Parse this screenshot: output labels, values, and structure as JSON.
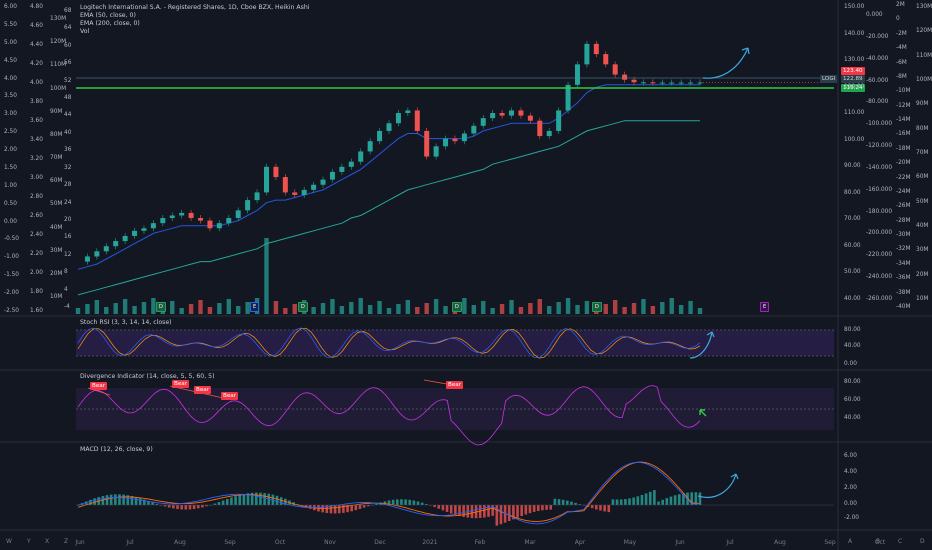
{
  "header": {
    "title": "Logitech International S.A. - Registered Shares, 1D, Cboe BZX, Heikin Ashi",
    "ema50": "EMA (50, close, 0)",
    "ema200": "EMA (200, close, 0)",
    "vol": "Vol"
  },
  "price_badges": {
    "last_red": "123.40",
    "logi_label": "LOGI",
    "logi_value": "122.89",
    "green_line": "119.24"
  },
  "indicators": {
    "stoch": "Stoch RSI (3, 3, 14, 14, close)",
    "div": "Divergence Indicator (14, close, 5, 5, 60, 5)",
    "macd": "MACD (12, 26, close, 9)"
  },
  "divergence_labels": [
    "Bear",
    "Bear",
    "Bear",
    "Bear",
    "Bear"
  ],
  "event_markers": [
    "D",
    "E",
    "D",
    "D",
    "D",
    "E"
  ],
  "bottom_letters": [
    "W",
    "Y",
    "X",
    "Z"
  ],
  "right_bottom_letters": [
    "A",
    "B",
    "C",
    "D"
  ],
  "left_axes": {
    "a": [
      "6.00",
      "5.50",
      "5.00",
      "4.50",
      "4.00",
      "3.50",
      "3.00",
      "2.50",
      "2.00",
      "1.50",
      "1.00",
      "0.50",
      "0.00",
      "-0.50",
      "-1.00",
      "-1.50",
      "-2.00",
      "-2.50"
    ],
    "b": [
      "4.80",
      "4.60",
      "4.40",
      "4.20",
      "4.00",
      "3.80",
      "3.60",
      "3.40",
      "3.20",
      "3.00",
      "2.80",
      "2.60",
      "2.40",
      "2.20",
      "2.00",
      "1.80",
      "1.60"
    ],
    "c": [
      "130M",
      "120M",
      "110M",
      "100M",
      "90M",
      "80M",
      "70M",
      "60M",
      "50M",
      "40M",
      "30M",
      "20M",
      "10M"
    ],
    "d": [
      "68",
      "64",
      "60",
      "56",
      "52",
      "48",
      "44",
      "40",
      "36",
      "32",
      "28",
      "24",
      "20",
      "16",
      "12",
      "8",
      "4",
      "-4"
    ]
  },
  "right_axes": {
    "price": [
      "150.00",
      "140.00",
      "130.00",
      "120.00",
      "110.00",
      "100.00",
      "90.00",
      "80.00",
      "70.00",
      "60.00",
      "50.00",
      "40.00"
    ],
    "osc": [
      "0.000",
      "-20.000",
      "-40.000",
      "-60.000",
      "-80.000",
      "-100.000",
      "-120.000",
      "-140.000",
      "-160.000",
      "-180.000",
      "-200.000",
      "-220.000",
      "-240.000",
      "-260.000"
    ],
    "vol2": [
      "2M",
      "0",
      "-2M",
      "-4M",
      "-6M",
      "-8M",
      "-10M",
      "-12M",
      "-14M",
      "-16M",
      "-18M",
      "-20M",
      "-22M",
      "-24M",
      "-26M",
      "-28M",
      "-30M",
      "-32M",
      "-34M",
      "-36M",
      "-38M",
      "-40M"
    ],
    "far": [
      "130M",
      "120M",
      "110M",
      "100M",
      "90M",
      "80M",
      "70M",
      "60M",
      "50M",
      "40M",
      "30M",
      "20M",
      "10M"
    ]
  },
  "chart_data": {
    "type": "line",
    "x_ticks": [
      "Jun",
      "Jul",
      "Aug",
      "Sep",
      "Oct",
      "Nov",
      "Dec",
      "2021",
      "Feb",
      "Mar",
      "Apr",
      "May",
      "Jun",
      "Jul",
      "Aug",
      "Sep",
      "Oct"
    ],
    "price_series": {
      "t": [
        0,
        1,
        2,
        3,
        4,
        5,
        6,
        7,
        8,
        9,
        10,
        11,
        12,
        13,
        14,
        15,
        16,
        17,
        18,
        19,
        20,
        21,
        22,
        23,
        24,
        25,
        26,
        27,
        28,
        29,
        30,
        31,
        32,
        33,
        34,
        35,
        36,
        37,
        38,
        39,
        40,
        41,
        42,
        43,
        44,
        45,
        46,
        47,
        48,
        49,
        50,
        51,
        52,
        53,
        54,
        55,
        56,
        57,
        58,
        59,
        60,
        61,
        62,
        63,
        64,
        65,
        66
      ],
      "close": [
        53,
        55,
        57,
        59,
        61,
        63,
        65,
        66,
        68,
        70,
        71,
        72,
        70,
        69,
        66,
        68,
        70,
        73,
        77,
        80,
        90,
        86,
        80,
        79,
        81,
        83,
        85,
        88,
        90,
        92,
        96,
        100,
        104,
        107,
        111,
        112,
        104,
        94,
        98,
        101,
        100,
        103,
        106,
        109,
        111,
        110,
        112,
        110,
        108,
        102,
        104,
        112,
        122,
        130,
        138,
        134,
        130,
        126,
        124,
        123,
        123,
        122.9,
        122.9,
        122.9,
        122.9,
        122.9,
        122.9
      ],
      "ema50": [
        50,
        51,
        52,
        54,
        56,
        58,
        60,
        62,
        64,
        65,
        66,
        67,
        67,
        67,
        67,
        67,
        68,
        69,
        71,
        73,
        76,
        77,
        77,
        78,
        79,
        80,
        81,
        83,
        85,
        87,
        89,
        92,
        95,
        98,
        101,
        103,
        103,
        101,
        101,
        101,
        101,
        101,
        102,
        104,
        105,
        106,
        107,
        107,
        107,
        107,
        107,
        109,
        112,
        115,
        119,
        121,
        122,
        122,
        122,
        122,
        122,
        122,
        122,
        122,
        122,
        122,
        122
      ],
      "ema200": [
        40,
        41,
        42,
        43,
        44,
        45,
        46,
        47,
        48,
        49,
        50,
        51,
        52,
        53,
        53,
        54,
        55,
        56,
        57,
        58,
        60,
        61,
        62,
        63,
        64,
        65,
        66,
        67,
        68,
        70,
        71,
        73,
        75,
        77,
        79,
        81,
        82,
        83,
        84,
        85,
        86,
        87,
        88,
        89,
        91,
        92,
        93,
        94,
        95,
        96,
        97,
        98,
        100,
        102,
        104,
        105,
        106,
        107,
        108,
        108,
        108,
        108,
        108,
        108,
        108,
        108,
        108
      ]
    },
    "price_range": [
      38,
      152
    ],
    "horizontal_line": 119.24,
    "volume_peak_index": 20
  }
}
